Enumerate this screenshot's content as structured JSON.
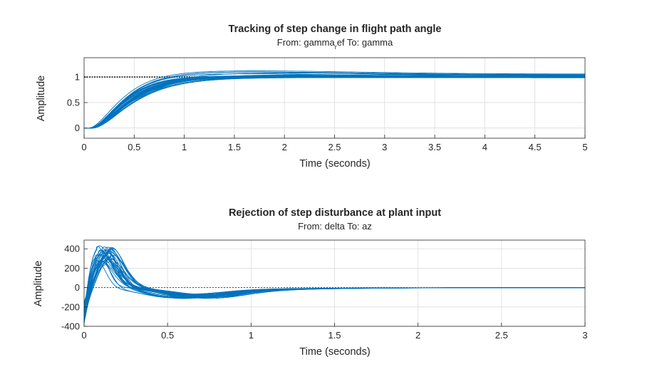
{
  "colors": {
    "response": "#0072BD",
    "reference": "#444444",
    "grid": "#dcdcdc",
    "axes": "#262626"
  },
  "chart_data": [
    {
      "type": "line",
      "title": "Tracking of step change in flight path angle",
      "subtitle_pre": "From: gamma",
      "subtitle_sub": "r",
      "subtitle_post": "ef  To: gamma",
      "xlabel": "Time (seconds)",
      "ylabel": "Amplitude",
      "xlim": [
        0,
        5
      ],
      "ylim": [
        -0.2,
        1.38
      ],
      "xticks": [
        0,
        0.5,
        1,
        1.5,
        2,
        2.5,
        3,
        3.5,
        4,
        4.5,
        5
      ],
      "yticks": [
        0,
        0.5,
        1
      ],
      "grid": true,
      "reference": {
        "y": 1,
        "style": "dotted"
      },
      "series_description": "Family of ~30 step responses rising from 0 to settle near 1 (final values 0.99-1.06) by ~1.2 s",
      "series": {
        "count": 30,
        "rise_time_range": [
          0.18,
          0.26
        ],
        "delay": [
          0.04,
          0.09
        ],
        "final_range": [
          0.985,
          1.06
        ]
      }
    },
    {
      "type": "line",
      "title": "Rejection of step disturbance at plant input",
      "subtitle": "From: delta  To: az",
      "xlabel": "Time (seconds)",
      "ylabel": "Amplitude",
      "xlim": [
        0,
        3
      ],
      "ylim": [
        -400,
        490
      ],
      "xticks": [
        0,
        0.5,
        1,
        1.5,
        2,
        2.5,
        3
      ],
      "yticks": [
        -400,
        -200,
        0,
        200,
        400
      ],
      "grid": true,
      "reference": {
        "y": 0,
        "style": "dotted"
      },
      "series_description": "Family of ~30 disturbance responses: initial dip to about -350, peak 280-470 near t=0.08-0.15 s, undershoot to about -100 near 0.6 s, decay to 0 by ~2 s",
      "series": {
        "count": 30,
        "initial": [
          -380,
          -150
        ],
        "peak_range": [
          280,
          470
        ],
        "peak_time": [
          0.06,
          0.16
        ],
        "undershoot": [
          -120,
          -70
        ]
      }
    }
  ]
}
